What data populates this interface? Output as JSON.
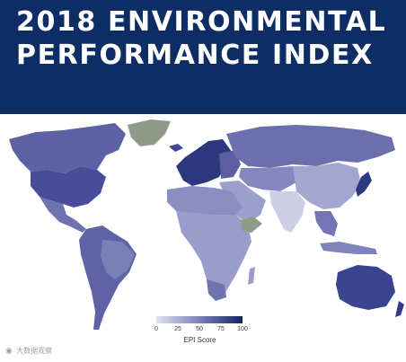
{
  "title": {
    "line1": "2018 ENVIRONMENTAL",
    "line2": "PERFORMANCE INDEX"
  },
  "colors": {
    "banner": "#0d2d64",
    "no_data": "#8f9a88",
    "ocean": "#ffffff",
    "scale_low": "#e1e1f1",
    "scale_high": "#13265f"
  },
  "legend": {
    "ticks": [
      "0",
      "25",
      "50",
      "75",
      "100"
    ],
    "label": "EPI Score"
  },
  "watermark": {
    "icon": "weibo-logo-icon",
    "text": "大数据观察"
  }
}
